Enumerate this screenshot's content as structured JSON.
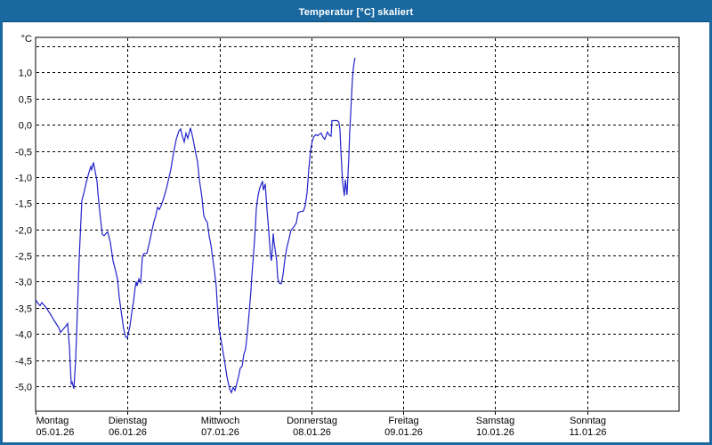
{
  "window": {
    "title": "Temperatur [°C] skaliert",
    "titlebar_color": "#1a689f"
  },
  "chart_data": {
    "type": "line",
    "title": "Temperatur [°C] skaliert",
    "y_unit": "°C",
    "ylabel": "Temperatur [°C]",
    "xlabel": "",
    "grid": "dashed-black-on-white",
    "legend": "none",
    "ylim": [
      -5.5,
      1.7
    ],
    "x_range_days": 7,
    "line_color": "#2222cc",
    "y_ticks": [
      {
        "v": 1.5,
        "label": ""
      },
      {
        "v": 1.0,
        "label": "1,0"
      },
      {
        "v": 0.5,
        "label": "0,5"
      },
      {
        "v": 0.0,
        "label": "0,0"
      },
      {
        "v": -0.5,
        "label": "-0,5"
      },
      {
        "v": -1.0,
        "label": "-1,0"
      },
      {
        "v": -1.5,
        "label": "-1,5"
      },
      {
        "v": -2.0,
        "label": "-2,0"
      },
      {
        "v": -2.5,
        "label": "-2,5"
      },
      {
        "v": -3.0,
        "label": "-3,0"
      },
      {
        "v": -3.5,
        "label": "-3,5"
      },
      {
        "v": -4.0,
        "label": "-4,0"
      },
      {
        "v": -4.5,
        "label": "-4,5"
      },
      {
        "v": -5.0,
        "label": "-5,0"
      }
    ],
    "x_days": [
      {
        "name": "Montag",
        "date": "05.01.26"
      },
      {
        "name": "Dienstag",
        "date": "06.01.26"
      },
      {
        "name": "Mittwoch",
        "date": "07.01.26"
      },
      {
        "name": "Donnerstag",
        "date": "08.01.26"
      },
      {
        "name": "Freitag",
        "date": "09.01.26"
      },
      {
        "name": "Samstag",
        "date": "10.01.26"
      },
      {
        "name": "Sonntag",
        "date": "11.01.26"
      }
    ],
    "series": [
      {
        "name": "Temperatur skaliert",
        "color": "#2222cc",
        "points": [
          [
            0.0,
            -3.35
          ],
          [
            0.029,
            -3.42
          ],
          [
            0.048,
            -3.46
          ],
          [
            0.068,
            -3.4
          ],
          [
            0.087,
            -3.44
          ],
          [
            0.116,
            -3.5
          ],
          [
            0.145,
            -3.58
          ],
          [
            0.165,
            -3.63
          ],
          [
            0.194,
            -3.72
          ],
          [
            0.223,
            -3.8
          ],
          [
            0.252,
            -3.88
          ],
          [
            0.271,
            -3.97
          ],
          [
            0.3,
            -3.91
          ],
          [
            0.329,
            -3.85
          ],
          [
            0.349,
            -3.8
          ],
          [
            0.368,
            -4.25
          ],
          [
            0.387,
            -4.95
          ],
          [
            0.397,
            -4.92
          ],
          [
            0.416,
            -5.05
          ],
          [
            0.436,
            -4.5
          ],
          [
            0.455,
            -3.55
          ],
          [
            0.474,
            -2.55
          ],
          [
            0.494,
            -1.8
          ],
          [
            0.503,
            -1.45
          ],
          [
            0.523,
            -1.32
          ],
          [
            0.552,
            -1.1
          ],
          [
            0.581,
            -0.91
          ],
          [
            0.6,
            -0.8
          ],
          [
            0.61,
            -0.86
          ],
          [
            0.629,
            -0.72
          ],
          [
            0.649,
            -0.9
          ],
          [
            0.668,
            -1.08
          ],
          [
            0.678,
            -1.3
          ],
          [
            0.697,
            -1.65
          ],
          [
            0.716,
            -1.96
          ],
          [
            0.726,
            -2.1
          ],
          [
            0.746,
            -2.12
          ],
          [
            0.765,
            -2.08
          ],
          [
            0.784,
            -2.05
          ],
          [
            0.813,
            -2.25
          ],
          [
            0.842,
            -2.6
          ],
          [
            0.871,
            -2.8
          ],
          [
            0.891,
            -2.95
          ],
          [
            0.91,
            -3.3
          ],
          [
            0.929,
            -3.55
          ],
          [
            0.958,
            -3.9
          ],
          [
            0.978,
            -4.05
          ],
          [
            0.997,
            -4.08
          ],
          [
            1.026,
            -3.85
          ],
          [
            1.046,
            -3.6
          ],
          [
            1.065,
            -3.38
          ],
          [
            1.084,
            -3.1
          ],
          [
            1.094,
            -3.0
          ],
          [
            1.104,
            -3.08
          ],
          [
            1.123,
            -2.95
          ],
          [
            1.142,
            -3.02
          ],
          [
            1.162,
            -2.52
          ],
          [
            1.181,
            -2.46
          ],
          [
            1.21,
            -2.46
          ],
          [
            1.239,
            -2.25
          ],
          [
            1.259,
            -2.08
          ],
          [
            1.288,
            -1.85
          ],
          [
            1.307,
            -1.74
          ],
          [
            1.326,
            -1.58
          ],
          [
            1.346,
            -1.62
          ],
          [
            1.365,
            -1.55
          ],
          [
            1.394,
            -1.4
          ],
          [
            1.423,
            -1.22
          ],
          [
            1.452,
            -1.0
          ],
          [
            1.472,
            -0.85
          ],
          [
            1.501,
            -0.54
          ],
          [
            1.53,
            -0.28
          ],
          [
            1.559,
            -0.12
          ],
          [
            1.578,
            -0.08
          ],
          [
            1.597,
            -0.22
          ],
          [
            1.617,
            -0.33
          ],
          [
            1.636,
            -0.16
          ],
          [
            1.656,
            -0.26
          ],
          [
            1.685,
            -0.06
          ],
          [
            1.704,
            -0.2
          ],
          [
            1.723,
            -0.37
          ],
          [
            1.743,
            -0.55
          ],
          [
            1.762,
            -0.71
          ],
          [
            1.781,
            -1.05
          ],
          [
            1.81,
            -1.39
          ],
          [
            1.83,
            -1.74
          ],
          [
            1.849,
            -1.82
          ],
          [
            1.868,
            -1.86
          ],
          [
            1.888,
            -2.13
          ],
          [
            1.907,
            -2.3
          ],
          [
            1.926,
            -2.54
          ],
          [
            1.946,
            -2.8
          ],
          [
            1.965,
            -3.1
          ],
          [
            1.975,
            -3.4
          ],
          [
            1.994,
            -3.88
          ],
          [
            2.014,
            -4.08
          ],
          [
            2.053,
            -4.48
          ],
          [
            2.082,
            -4.82
          ],
          [
            2.111,
            -5.05
          ],
          [
            2.13,
            -5.12
          ],
          [
            2.149,
            -5.02
          ],
          [
            2.169,
            -5.08
          ],
          [
            2.188,
            -4.95
          ],
          [
            2.207,
            -4.82
          ],
          [
            2.227,
            -4.65
          ],
          [
            2.246,
            -4.62
          ],
          [
            2.265,
            -4.4
          ],
          [
            2.285,
            -4.28
          ],
          [
            2.304,
            -3.97
          ],
          [
            2.323,
            -3.6
          ],
          [
            2.343,
            -3.16
          ],
          [
            2.352,
            -2.9
          ],
          [
            2.372,
            -2.45
          ],
          [
            2.391,
            -1.95
          ],
          [
            2.401,
            -1.6
          ],
          [
            2.42,
            -1.35
          ],
          [
            2.44,
            -1.2
          ],
          [
            2.459,
            -1.12
          ],
          [
            2.469,
            -1.08
          ],
          [
            2.478,
            -1.25
          ],
          [
            2.498,
            -1.13
          ],
          [
            2.517,
            -1.62
          ],
          [
            2.536,
            -2.02
          ],
          [
            2.556,
            -2.5
          ],
          [
            2.565,
            -2.6
          ],
          [
            2.575,
            -2.38
          ],
          [
            2.585,
            -2.08
          ],
          [
            2.594,
            -2.25
          ],
          [
            2.604,
            -2.37
          ],
          [
            2.623,
            -2.6
          ],
          [
            2.633,
            -2.93
          ],
          [
            2.652,
            -3.03
          ],
          [
            2.672,
            -3.04
          ],
          [
            2.691,
            -2.88
          ],
          [
            2.71,
            -2.6
          ],
          [
            2.73,
            -2.37
          ],
          [
            2.759,
            -2.16
          ],
          [
            2.778,
            -2.02
          ],
          [
            2.807,
            -1.96
          ],
          [
            2.836,
            -1.88
          ],
          [
            2.856,
            -1.68
          ],
          [
            2.885,
            -1.66
          ],
          [
            2.914,
            -1.65
          ],
          [
            2.933,
            -1.55
          ],
          [
            2.953,
            -1.3
          ],
          [
            2.972,
            -0.85
          ],
          [
            2.991,
            -0.5
          ],
          [
            3.011,
            -0.3
          ],
          [
            3.03,
            -0.22
          ],
          [
            3.049,
            -0.19
          ],
          [
            3.069,
            -0.21
          ],
          [
            3.088,
            -0.18
          ],
          [
            3.107,
            -0.16
          ],
          [
            3.127,
            -0.24
          ],
          [
            3.146,
            -0.28
          ],
          [
            3.166,
            -0.18
          ],
          [
            3.175,
            -0.14
          ],
          [
            3.195,
            -0.2
          ],
          [
            3.214,
            -0.22
          ],
          [
            3.224,
            0.08
          ],
          [
            3.253,
            0.08
          ],
          [
            3.282,
            0.08
          ],
          [
            3.301,
            0.04
          ],
          [
            3.311,
            -0.1
          ],
          [
            3.321,
            -0.5
          ],
          [
            3.34,
            -1.1
          ],
          [
            3.359,
            -1.36
          ],
          [
            3.369,
            -1.05
          ],
          [
            3.388,
            -1.34
          ],
          [
            3.408,
            -0.6
          ],
          [
            3.417,
            -0.15
          ],
          [
            3.427,
            0.2
          ],
          [
            3.437,
            0.55
          ],
          [
            3.446,
            0.85
          ],
          [
            3.456,
            1.08
          ],
          [
            3.466,
            1.2
          ],
          [
            3.475,
            1.28
          ]
        ]
      }
    ]
  }
}
